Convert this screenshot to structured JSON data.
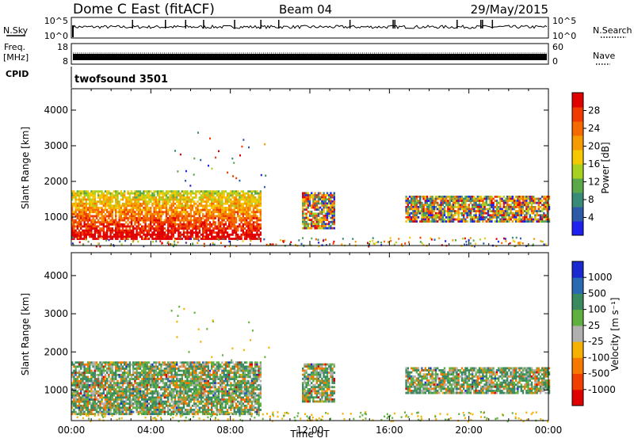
{
  "header": {
    "station": "Dome C East (fitACF)",
    "beam": "Beam 04",
    "date": "29/May/2015"
  },
  "noise_panel": {
    "left_label": "N.Sky",
    "right_label": "N.Search",
    "left_ticks": [
      "10^5",
      "10^0"
    ],
    "right_ticks": [
      "10^5",
      "10^0"
    ]
  },
  "freq_panel": {
    "left_label_line1": "Freq.",
    "left_label_line2": "[MHz]",
    "right_label": "Nave",
    "left_ticks": [
      "18",
      "8"
    ],
    "right_ticks": [
      "60",
      "0"
    ]
  },
  "cpid": {
    "label": "CPID",
    "value": "twofsound 3501"
  },
  "chart_data": [
    {
      "type": "heatmap",
      "name": "power",
      "ylabel": "Slant Range [km]",
      "ylim": [
        200,
        4600
      ],
      "yticks": [
        "1000",
        "2000",
        "3000",
        "4000"
      ],
      "xlim": [
        0,
        24
      ],
      "colorbar": {
        "label": "Power [dB]",
        "ticks": [
          "4",
          "8",
          "12",
          "16",
          "20",
          "24",
          "28"
        ],
        "colors": [
          "#1f1ff0",
          "#2c5aa8",
          "#3a8a78",
          "#5aa84a",
          "#a8d020",
          "#f5c800",
          "#f59a00",
          "#f56a00",
          "#f03a00",
          "#e00000"
        ]
      },
      "regions": [
        {
          "t0": 0.0,
          "t1": 9.5,
          "r0": 400,
          "r1": 1750,
          "fill": "power"
        },
        {
          "t0": 11.6,
          "t1": 13.2,
          "r0": 700,
          "r1": 1700,
          "fill": "power"
        },
        {
          "t0": 16.8,
          "t1": 24.0,
          "r0": 900,
          "r1": 1600,
          "fill": "power"
        }
      ]
    },
    {
      "type": "heatmap",
      "name": "velocity",
      "ylabel": "Slant Range [km]",
      "xlabel": "Time UT",
      "ylim": [
        200,
        4600
      ],
      "yticks": [
        "1000",
        "2000",
        "3000",
        "4000"
      ],
      "xlim": [
        0,
        24
      ],
      "xticks": [
        "00:00",
        "04:00",
        "08:00",
        "12:00",
        "16:00",
        "20:00",
        "00:00"
      ],
      "colorbar": {
        "label": "Velocity [m s⁻¹]",
        "ticks": [
          "1000",
          "500",
          "100",
          "25",
          "-25",
          "-100",
          "-500",
          "-1000"
        ],
        "colors": [
          "#1a2ad0",
          "#2a6ab0",
          "#3a8a60",
          "#60b040",
          "#b0b0b0",
          "#f5b000",
          "#f57800",
          "#f04000",
          "#e00000"
        ]
      },
      "regions": [
        {
          "t0": 0.0,
          "t1": 9.5,
          "r0": 400,
          "r1": 1750,
          "fill": "velocity"
        },
        {
          "t0": 11.6,
          "t1": 13.2,
          "r0": 700,
          "r1": 1700,
          "fill": "velocity"
        },
        {
          "t0": 16.8,
          "t1": 24.0,
          "r0": 900,
          "r1": 1600,
          "fill": "velocity"
        }
      ]
    }
  ]
}
